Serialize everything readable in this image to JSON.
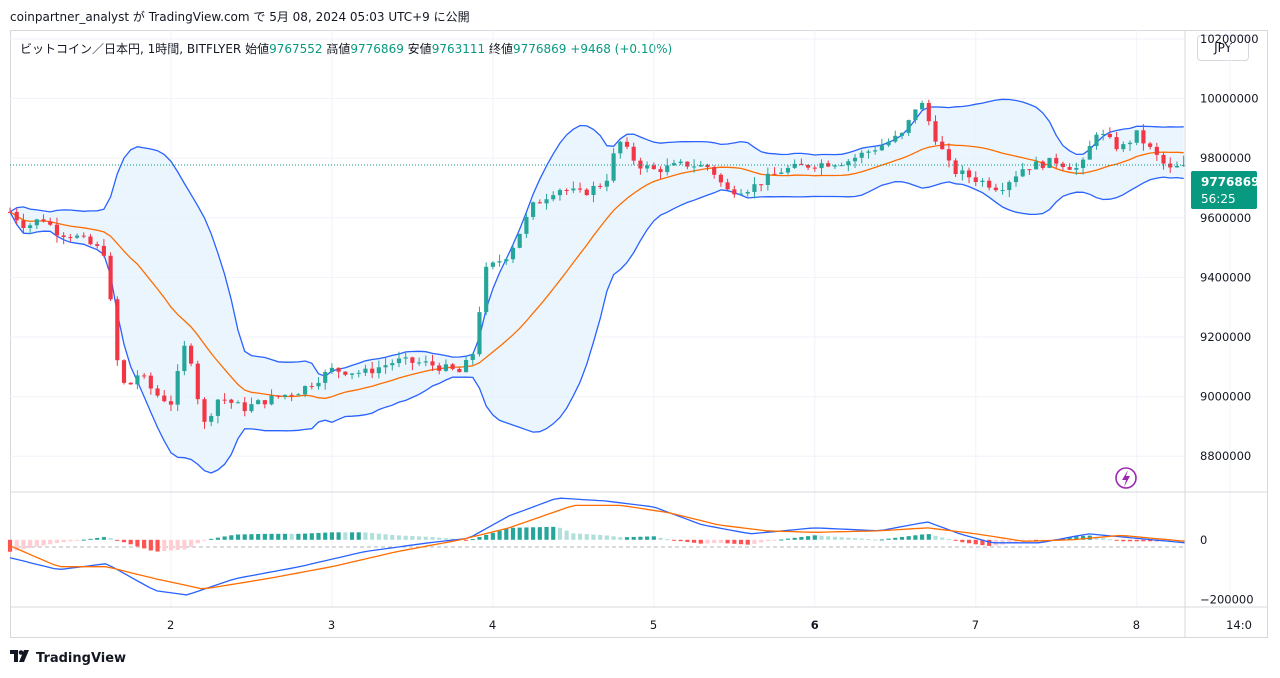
{
  "header": {
    "published": "coinpartner_analyst が TradingView.com で 5月 08, 2024 05:03 UTC+9 に公開"
  },
  "legend": {
    "symbol": "ビットコイン／日本円, 1時間, BITFLYER",
    "open_label": "始値",
    "open": "9767552",
    "high_label": "高値",
    "high": "9776869",
    "low_label": "安値",
    "low": "9763111",
    "close_label": "終値",
    "close": "9776869",
    "change": "+9468 (+0.10%)"
  },
  "currency_button": "JPY",
  "price_badge": {
    "price": "9776869",
    "countdown": "56:25"
  },
  "brand": "TradingView",
  "colors": {
    "up": "#26a69a",
    "down": "#f23645",
    "band": "#2962ff",
    "basis": "#ff6d00",
    "band_fill": "#e3f2fd",
    "macd_line": "#2962ff",
    "signal_line": "#ff6d00"
  },
  "chart_data": [
    {
      "type": "line",
      "subtype": "candlestick with bollinger bands",
      "x_type": "day-of-month (hourly candles)",
      "x_range": [
        1.0,
        8.3
      ],
      "x_ticks": [
        "2",
        "3",
        "4",
        "5",
        "6",
        "7",
        "8",
        "14:0"
      ],
      "y_ticks": [
        "10200000",
        "10000000",
        "9800000",
        "9600000",
        "9400000",
        "9200000",
        "9000000",
        "8800000"
      ],
      "ylim": [
        8680000,
        10230000
      ],
      "last_price": 9776869,
      "price_path": [
        [
          1.0,
          9620000
        ],
        [
          1.1,
          9570000
        ],
        [
          1.2,
          9600000
        ],
        [
          1.3,
          9550000
        ],
        [
          1.4,
          9540000
        ],
        [
          1.5,
          9510000
        ],
        [
          1.6,
          9480000
        ],
        [
          1.65,
          9150000
        ],
        [
          1.72,
          9020000
        ],
        [
          1.8,
          9080000
        ],
        [
          1.9,
          9010000
        ],
        [
          2.0,
          8980000
        ],
        [
          2.1,
          9200000
        ],
        [
          2.2,
          8900000
        ],
        [
          2.3,
          9000000
        ],
        [
          2.45,
          8960000
        ],
        [
          2.6,
          8990000
        ],
        [
          2.8,
          9020000
        ],
        [
          3.0,
          9090000
        ],
        [
          3.2,
          9080000
        ],
        [
          3.4,
          9120000
        ],
        [
          3.6,
          9110000
        ],
        [
          3.8,
          9080000
        ],
        [
          3.88,
          9150000
        ],
        [
          3.95,
          9420000
        ],
        [
          4.1,
          9480000
        ],
        [
          4.25,
          9640000
        ],
        [
          4.4,
          9700000
        ],
        [
          4.55,
          9680000
        ],
        [
          4.7,
          9720000
        ],
        [
          4.78,
          9860000
        ],
        [
          4.9,
          9780000
        ],
        [
          5.0,
          9760000
        ],
        [
          5.2,
          9780000
        ],
        [
          5.35,
          9770000
        ],
        [
          5.45,
          9690000
        ],
        [
          5.6,
          9700000
        ],
        [
          5.8,
          9760000
        ],
        [
          6.0,
          9780000
        ],
        [
          6.2,
          9790000
        ],
        [
          6.4,
          9840000
        ],
        [
          6.55,
          9880000
        ],
        [
          6.65,
          10000000
        ],
        [
          6.75,
          9870000
        ],
        [
          6.85,
          9760000
        ],
        [
          7.0,
          9730000
        ],
        [
          7.15,
          9700000
        ],
        [
          7.3,
          9770000
        ],
        [
          7.5,
          9790000
        ],
        [
          7.65,
          9760000
        ],
        [
          7.75,
          9890000
        ],
        [
          7.9,
          9830000
        ],
        [
          8.0,
          9880000
        ],
        [
          8.1,
          9820000
        ],
        [
          8.2,
          9760000
        ],
        [
          8.3,
          9776869
        ]
      ]
    },
    {
      "type": "line",
      "subtype": "MACD",
      "y_ticks": [
        "0",
        "−200000"
      ],
      "ylim": [
        -225000,
        160000
      ],
      "series": [
        {
          "values": [
            [
              1.0,
              -60000
            ],
            [
              1.3,
              -100000
            ],
            [
              1.6,
              -80000
            ],
            [
              1.9,
              -170000
            ],
            [
              2.1,
              -185000
            ],
            [
              2.4,
              -130000
            ],
            [
              2.8,
              -90000
            ],
            [
              3.2,
              -40000
            ],
            [
              3.6,
              -10000
            ],
            [
              3.85,
              5000
            ],
            [
              4.1,
              80000
            ],
            [
              4.4,
              140000
            ],
            [
              4.7,
              130000
            ],
            [
              5.0,
              110000
            ],
            [
              5.3,
              50000
            ],
            [
              5.6,
              20000
            ],
            [
              6.0,
              40000
            ],
            [
              6.4,
              30000
            ],
            [
              6.7,
              60000
            ],
            [
              6.9,
              20000
            ],
            [
              7.1,
              -10000
            ],
            [
              7.4,
              -10000
            ],
            [
              7.7,
              20000
            ],
            [
              7.9,
              10000
            ],
            [
              8.1,
              0
            ],
            [
              8.3,
              -10000
            ]
          ]
        },
        {
          "values": [
            [
              1.0,
              -20000
            ],
            [
              1.3,
              -90000
            ],
            [
              1.6,
              -90000
            ],
            [
              1.9,
              -130000
            ],
            [
              2.2,
              -165000
            ],
            [
              2.6,
              -130000
            ],
            [
              3.0,
              -90000
            ],
            [
              3.4,
              -40000
            ],
            [
              3.8,
              0
            ],
            [
              4.1,
              40000
            ],
            [
              4.5,
              115000
            ],
            [
              4.8,
              115000
            ],
            [
              5.1,
              90000
            ],
            [
              5.4,
              50000
            ],
            [
              5.7,
              30000
            ],
            [
              6.0,
              25000
            ],
            [
              6.4,
              30000
            ],
            [
              6.7,
              40000
            ],
            [
              7.0,
              20000
            ],
            [
              7.3,
              -5000
            ],
            [
              7.6,
              0
            ],
            [
              7.9,
              15000
            ],
            [
              8.3,
              -5000
            ]
          ]
        }
      ]
    }
  ]
}
